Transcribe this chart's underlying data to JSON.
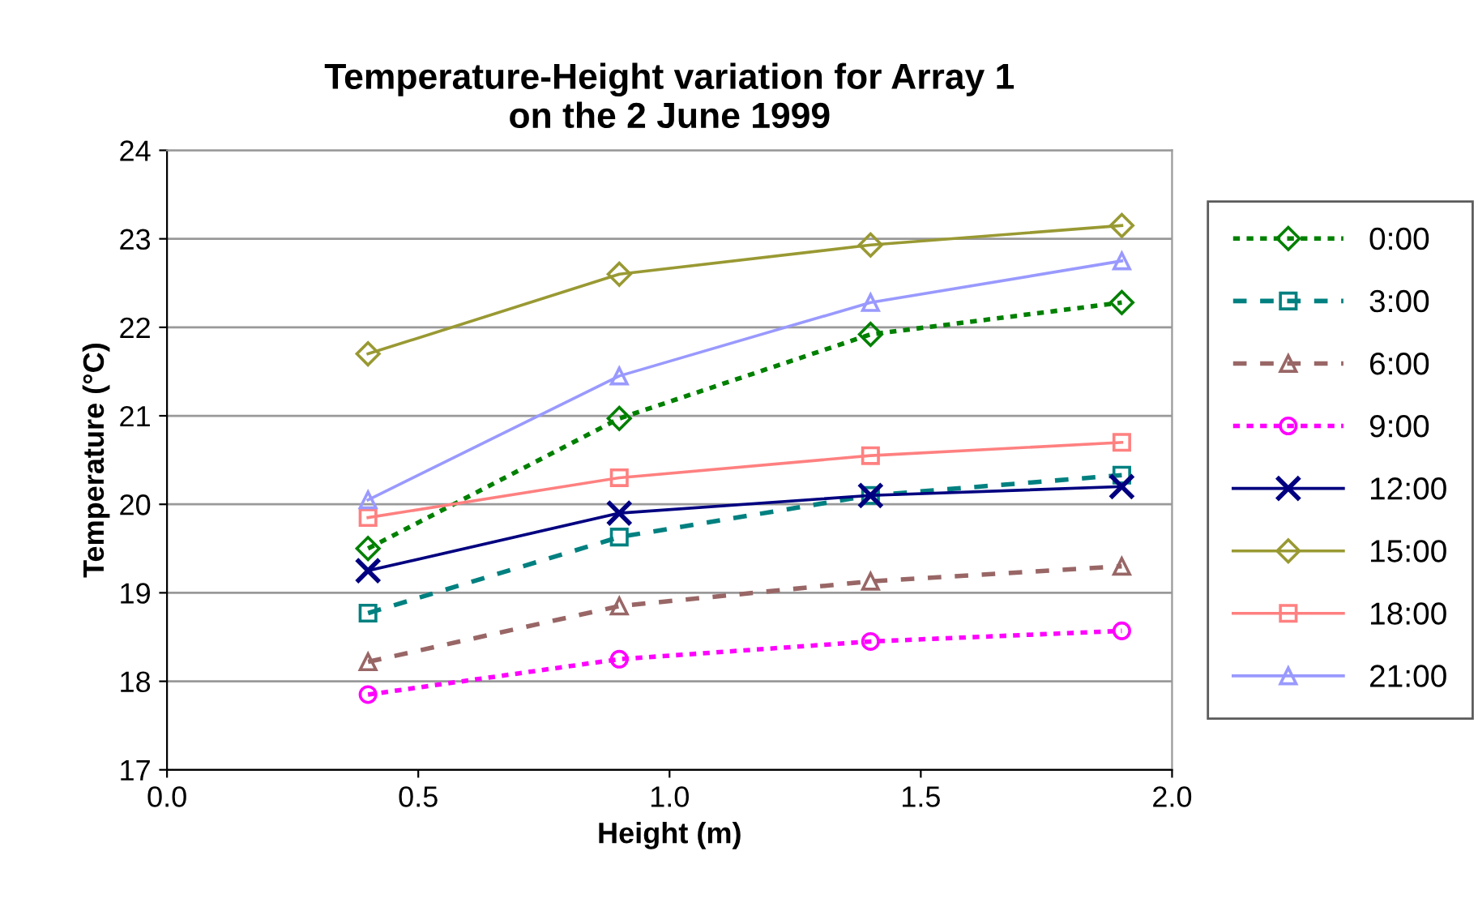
{
  "chart_data": {
    "type": "line",
    "title": "Temperature-Height variation for Array 1\non the 2 June 1999",
    "xlabel": "Height (m)",
    "ylabel": "Temperature (°C)",
    "x": [
      0.4,
      0.9,
      1.4,
      1.9
    ],
    "xlim": [
      0.0,
      2.0
    ],
    "xticks": [
      {
        "value": 0.0,
        "label": "0.0"
      },
      {
        "value": 0.5,
        "label": "0.5"
      },
      {
        "value": 1.0,
        "label": "1.0"
      },
      {
        "value": 1.5,
        "label": "1.5"
      },
      {
        "value": 2.0,
        "label": "2.0"
      }
    ],
    "ylim": [
      17,
      24
    ],
    "yticks": [
      17,
      18,
      19,
      20,
      21,
      22,
      23,
      24
    ],
    "grid": "y",
    "legend": "right",
    "series": [
      {
        "name": "0:00",
        "color": "#008000",
        "marker": "diamond",
        "line_style": "dotted",
        "values": [
          19.5,
          20.97,
          21.92,
          22.28
        ]
      },
      {
        "name": "3:00",
        "color": "#008080",
        "marker": "square",
        "line_style": "dashed",
        "values": [
          18.77,
          19.63,
          20.1,
          20.33
        ]
      },
      {
        "name": "6:00",
        "color": "#996666",
        "marker": "triangle",
        "line_style": "dashed",
        "values": [
          18.22,
          18.85,
          19.13,
          19.3
        ]
      },
      {
        "name": "9:00",
        "color": "#ff00ff",
        "marker": "circle",
        "line_style": "dotted",
        "values": [
          17.85,
          18.25,
          18.45,
          18.57
        ]
      },
      {
        "name": "12:00",
        "color": "#000080",
        "marker": "cross",
        "line_style": "solid",
        "values": [
          19.25,
          19.9,
          20.1,
          20.2
        ]
      },
      {
        "name": "15:00",
        "color": "#999933",
        "marker": "diamond",
        "line_style": "solid",
        "values": [
          21.7,
          22.6,
          22.93,
          23.15
        ]
      },
      {
        "name": "18:00",
        "color": "#ff8080",
        "marker": "square",
        "line_style": "solid",
        "values": [
          19.85,
          20.3,
          20.55,
          20.7
        ]
      },
      {
        "name": "21:00",
        "color": "#9999ff",
        "marker": "triangle",
        "line_style": "solid",
        "values": [
          20.05,
          21.45,
          22.28,
          22.75
        ]
      }
    ]
  }
}
